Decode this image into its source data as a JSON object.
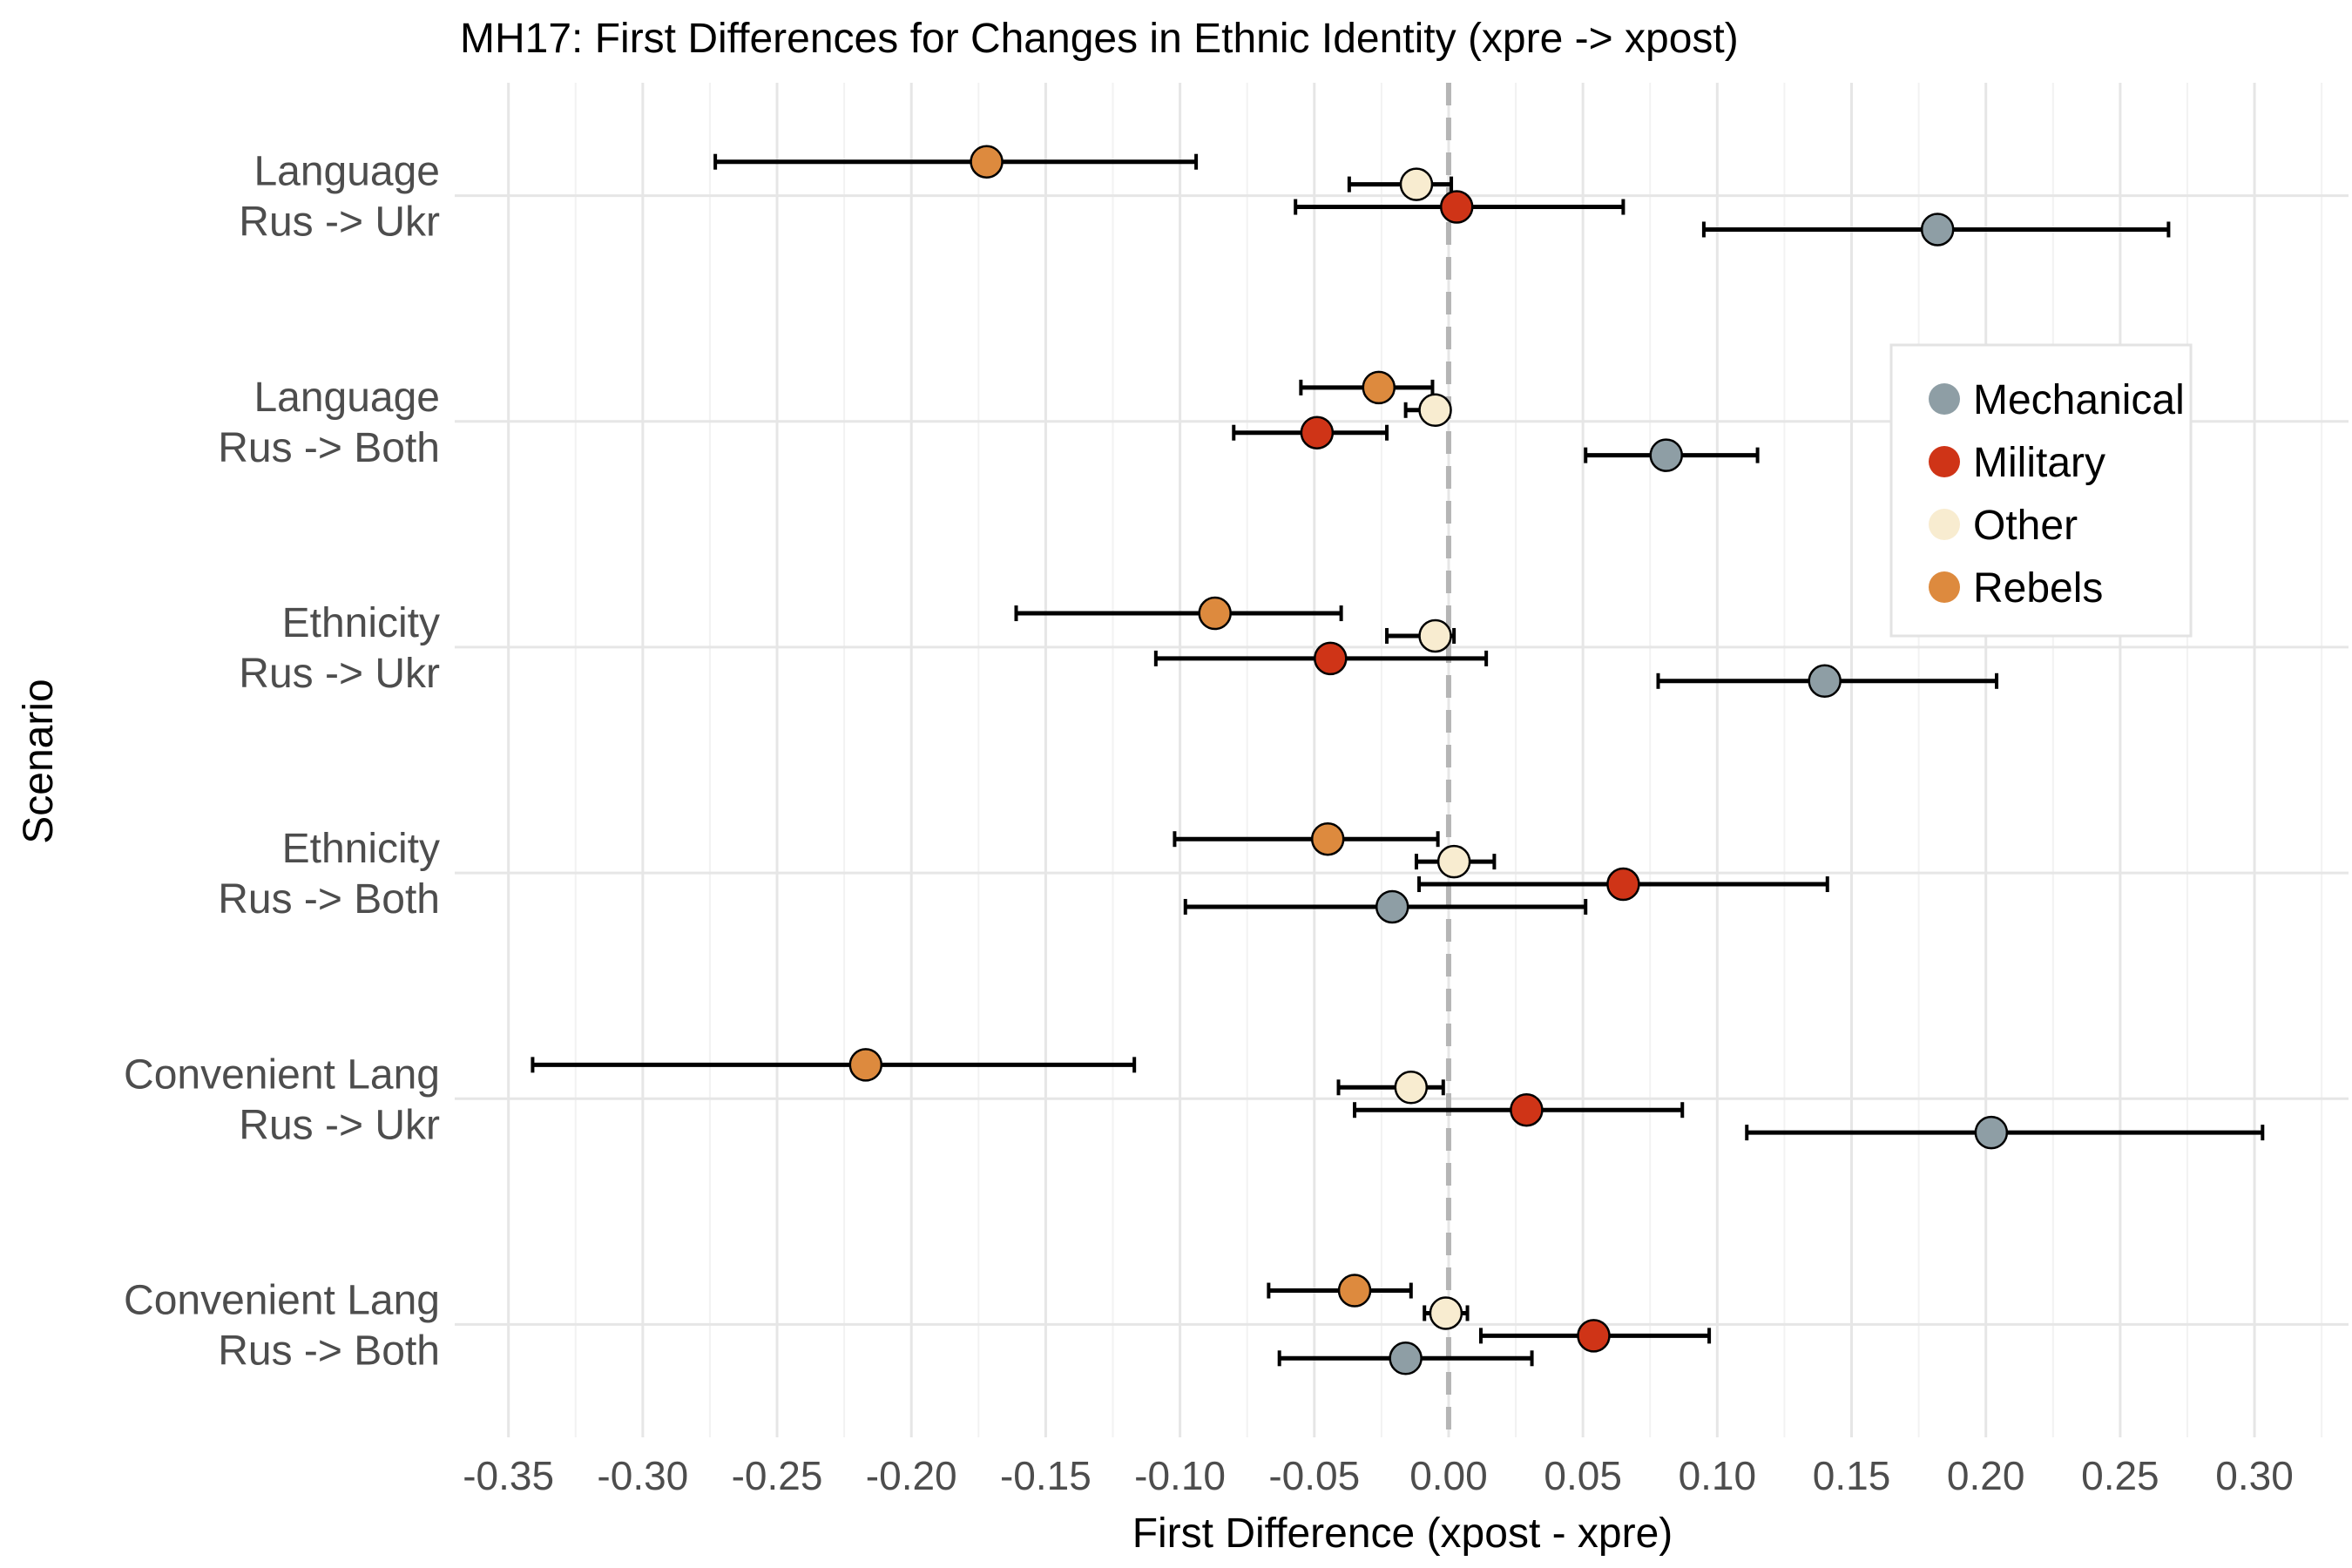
{
  "chart_data": {
    "type": "scatter",
    "title": "MH17: First Differences for Changes in Ethnic Identity (xpre -> xpost)",
    "xlabel": "First Difference (xpost - xpre)",
    "ylabel": "Scenario",
    "xlim": [
      -0.37,
      0.335
    ],
    "x_ticks": [
      -0.35,
      -0.3,
      -0.25,
      -0.2,
      -0.15,
      -0.1,
      -0.05,
      0.0,
      0.05,
      0.1,
      0.15,
      0.2,
      0.25,
      0.3
    ],
    "x_tick_labels": [
      "-0.35",
      "-0.30",
      "-0.25",
      "-0.20",
      "-0.15",
      "-0.10",
      "-0.05",
      "0.00",
      "0.05",
      "0.10",
      "0.15",
      "0.20",
      "0.25",
      "0.30"
    ],
    "reference_line": 0.0,
    "grid": true,
    "legend_position": "right",
    "legend_labels": [
      "Mechanical",
      "Military",
      "Other",
      "Rebels"
    ],
    "categories": [
      [
        "Language",
        "Rus -> Ukr"
      ],
      [
        "Language",
        "Rus -> Both"
      ],
      [
        "Ethnicity",
        "Rus -> Ukr"
      ],
      [
        "Ethnicity",
        "Rus -> Both"
      ],
      [
        "Convenient Lang",
        "Rus -> Ukr"
      ],
      [
        "Convenient Lang",
        "Rus -> Both"
      ]
    ],
    "series": [
      {
        "name": "Rebels",
        "color": "#dd8a3e",
        "offset": -0.15,
        "estimates": [
          -0.172,
          -0.026,
          -0.087,
          -0.045,
          -0.217,
          -0.035
        ],
        "lower": [
          -0.273,
          -0.055,
          -0.161,
          -0.102,
          -0.341,
          -0.067
        ],
        "upper": [
          -0.094,
          -0.006,
          -0.04,
          -0.004,
          -0.117,
          -0.014
        ]
      },
      {
        "name": "Other",
        "color": "#f8ecd0",
        "offset": -0.05,
        "estimates": [
          -0.012,
          -0.005,
          -0.005,
          0.002,
          -0.014,
          -0.001
        ],
        "lower": [
          -0.037,
          -0.016,
          -0.023,
          -0.012,
          -0.041,
          -0.009
        ],
        "upper": [
          0.001,
          0.0,
          0.002,
          0.017,
          -0.002,
          0.007
        ]
      },
      {
        "name": "Military",
        "color": "#cf3417",
        "offset": 0.05,
        "estimates": [
          0.003,
          -0.049,
          -0.044,
          0.065,
          0.029,
          0.054
        ],
        "lower": [
          -0.057,
          -0.08,
          -0.109,
          -0.011,
          -0.035,
          0.012
        ],
        "upper": [
          0.065,
          -0.023,
          0.014,
          0.141,
          0.087,
          0.097
        ]
      },
      {
        "name": "Mechanical",
        "color": "#8e9ea5",
        "offset": 0.15,
        "estimates": [
          0.182,
          0.081,
          0.14,
          -0.021,
          0.202,
          -0.016
        ],
        "lower": [
          0.095,
          0.051,
          0.078,
          -0.098,
          0.111,
          -0.063
        ],
        "upper": [
          0.268,
          0.115,
          0.204,
          0.051,
          0.303,
          0.031
        ]
      }
    ]
  }
}
